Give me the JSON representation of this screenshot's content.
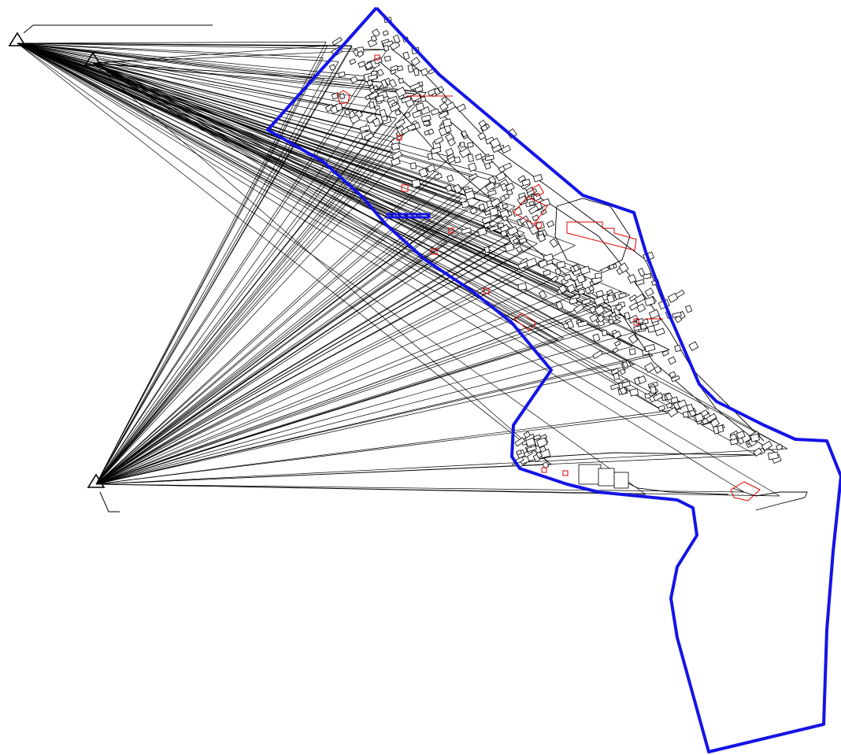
{
  "drawing": {
    "colors": {
      "boundary": "#1414e6",
      "buildings": "#000000",
      "highlighted_buildings": "#e00000",
      "survey_lines": "#000000",
      "background": "#ffffff"
    },
    "symbols": [
      "triangle-station-icon",
      "building-footprint",
      "survey-ray",
      "site-boundary"
    ]
  }
}
